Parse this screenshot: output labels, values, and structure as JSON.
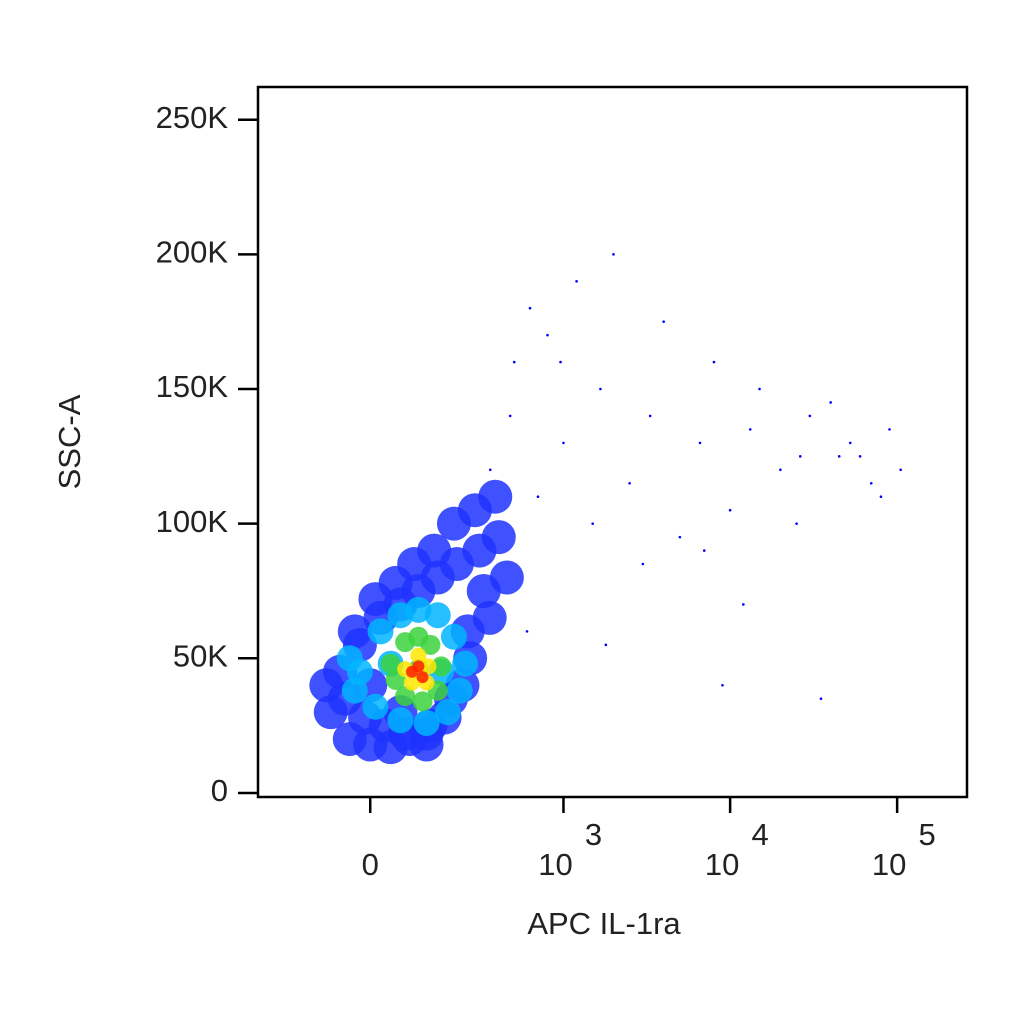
{
  "chart_data": {
    "type": "scatter",
    "x_label": "APC IL-1ra",
    "y_label": "SSC-A",
    "x_scale": "biexponential",
    "xlim": [
      -314,
      262000
    ],
    "ylim": [
      -1500,
      262144
    ],
    "xticks": [
      0,
      {
        "value": 1000,
        "label": "10",
        "sup": "3"
      },
      {
        "value": 10000,
        "label": "10",
        "sup": "4"
      },
      {
        "value": 100000,
        "label": "10",
        "sup": "5"
      }
    ],
    "yticks": [
      0,
      {
        "value": 50000,
        "label": "50K"
      },
      {
        "value": 100000,
        "label": "100K"
      },
      {
        "value": 150000,
        "label": "150K"
      },
      {
        "value": 200000,
        "label": "200K"
      },
      {
        "value": 250000,
        "label": "250K"
      }
    ],
    "series": [
      {
        "color": "#0000ff",
        "x": [
          626,
          960,
          1670,
          3320,
          6600,
          13200,
          26300,
          52400,
          105000,
          472,
          353,
          800,
          1200,
          2000,
          4000,
          8000,
          15000,
          30000,
          60000,
          90000,
          700,
          1500,
          2500,
          5000,
          10000,
          20000,
          40000,
          80000,
          500,
          1000,
          3000,
          7000,
          12000,
          25000,
          45000,
          70000,
          600,
          1800,
          9000,
          35000
        ],
        "values": [
          180000,
          160000,
          150000,
          140000,
          130000,
          135000,
          125000,
          130000,
          120000,
          140000,
          120000,
          170000,
          190000,
          200000,
          175000,
          160000,
          150000,
          140000,
          125000,
          135000,
          110000,
          100000,
          115000,
          95000,
          105000,
          120000,
          145000,
          110000,
          160000,
          130000,
          85000,
          90000,
          70000,
          100000,
          125000,
          115000,
          60000,
          55000,
          40000,
          35000
        ]
      },
      {
        "color": "#1e32ff",
        "x": [
          -80,
          -40,
          0,
          40,
          80,
          130,
          190,
          260,
          350,
          450,
          -60,
          -20,
          20,
          60,
          100,
          150,
          210,
          300,
          400,
          -90,
          -50,
          -10,
          30,
          70,
          120,
          170,
          230,
          320,
          -30,
          10,
          50,
          90,
          140,
          200,
          280,
          380,
          0,
          60,
          120,
          250
        ],
        "values": [
          30000,
          20000,
          18000,
          17000,
          20000,
          25000,
          35000,
          50000,
          65000,
          80000,
          45000,
          55000,
          65000,
          70000,
          75000,
          80000,
          85000,
          90000,
          95000,
          40000,
          35000,
          28000,
          25000,
          22000,
          22000,
          28000,
          40000,
          75000,
          60000,
          72000,
          78000,
          85000,
          90000,
          100000,
          105000,
          110000,
          40000,
          30000,
          18000,
          60000
        ]
      },
      {
        "color": "#00b4ff",
        "x": [
          -20,
          20,
          60,
          100,
          150,
          200,
          240,
          220,
          180,
          120,
          60,
          10,
          -30,
          -40,
          40,
          160
        ],
        "values": [
          45000,
          60000,
          66000,
          68000,
          66000,
          58000,
          48000,
          38000,
          30000,
          26000,
          27000,
          32000,
          38000,
          50000,
          48000,
          45000
        ]
      },
      {
        "color": "#3cd23c",
        "x": [
          40,
          70,
          100,
          130,
          160,
          150,
          110,
          70,
          50,
          100
        ],
        "values": [
          48000,
          56000,
          58000,
          55000,
          47000,
          38000,
          34000,
          36000,
          42000,
          46000
        ]
      },
      {
        "color": "#ffe600",
        "x": [
          70,
          100,
          125,
          120,
          85,
          100
        ],
        "values": [
          46000,
          51000,
          47000,
          41000,
          41000,
          45000
        ]
      },
      {
        "color": "#ff2000",
        "x": [
          85,
          100,
          110
        ],
        "values": [
          45000,
          47000,
          43000
        ]
      }
    ]
  }
}
